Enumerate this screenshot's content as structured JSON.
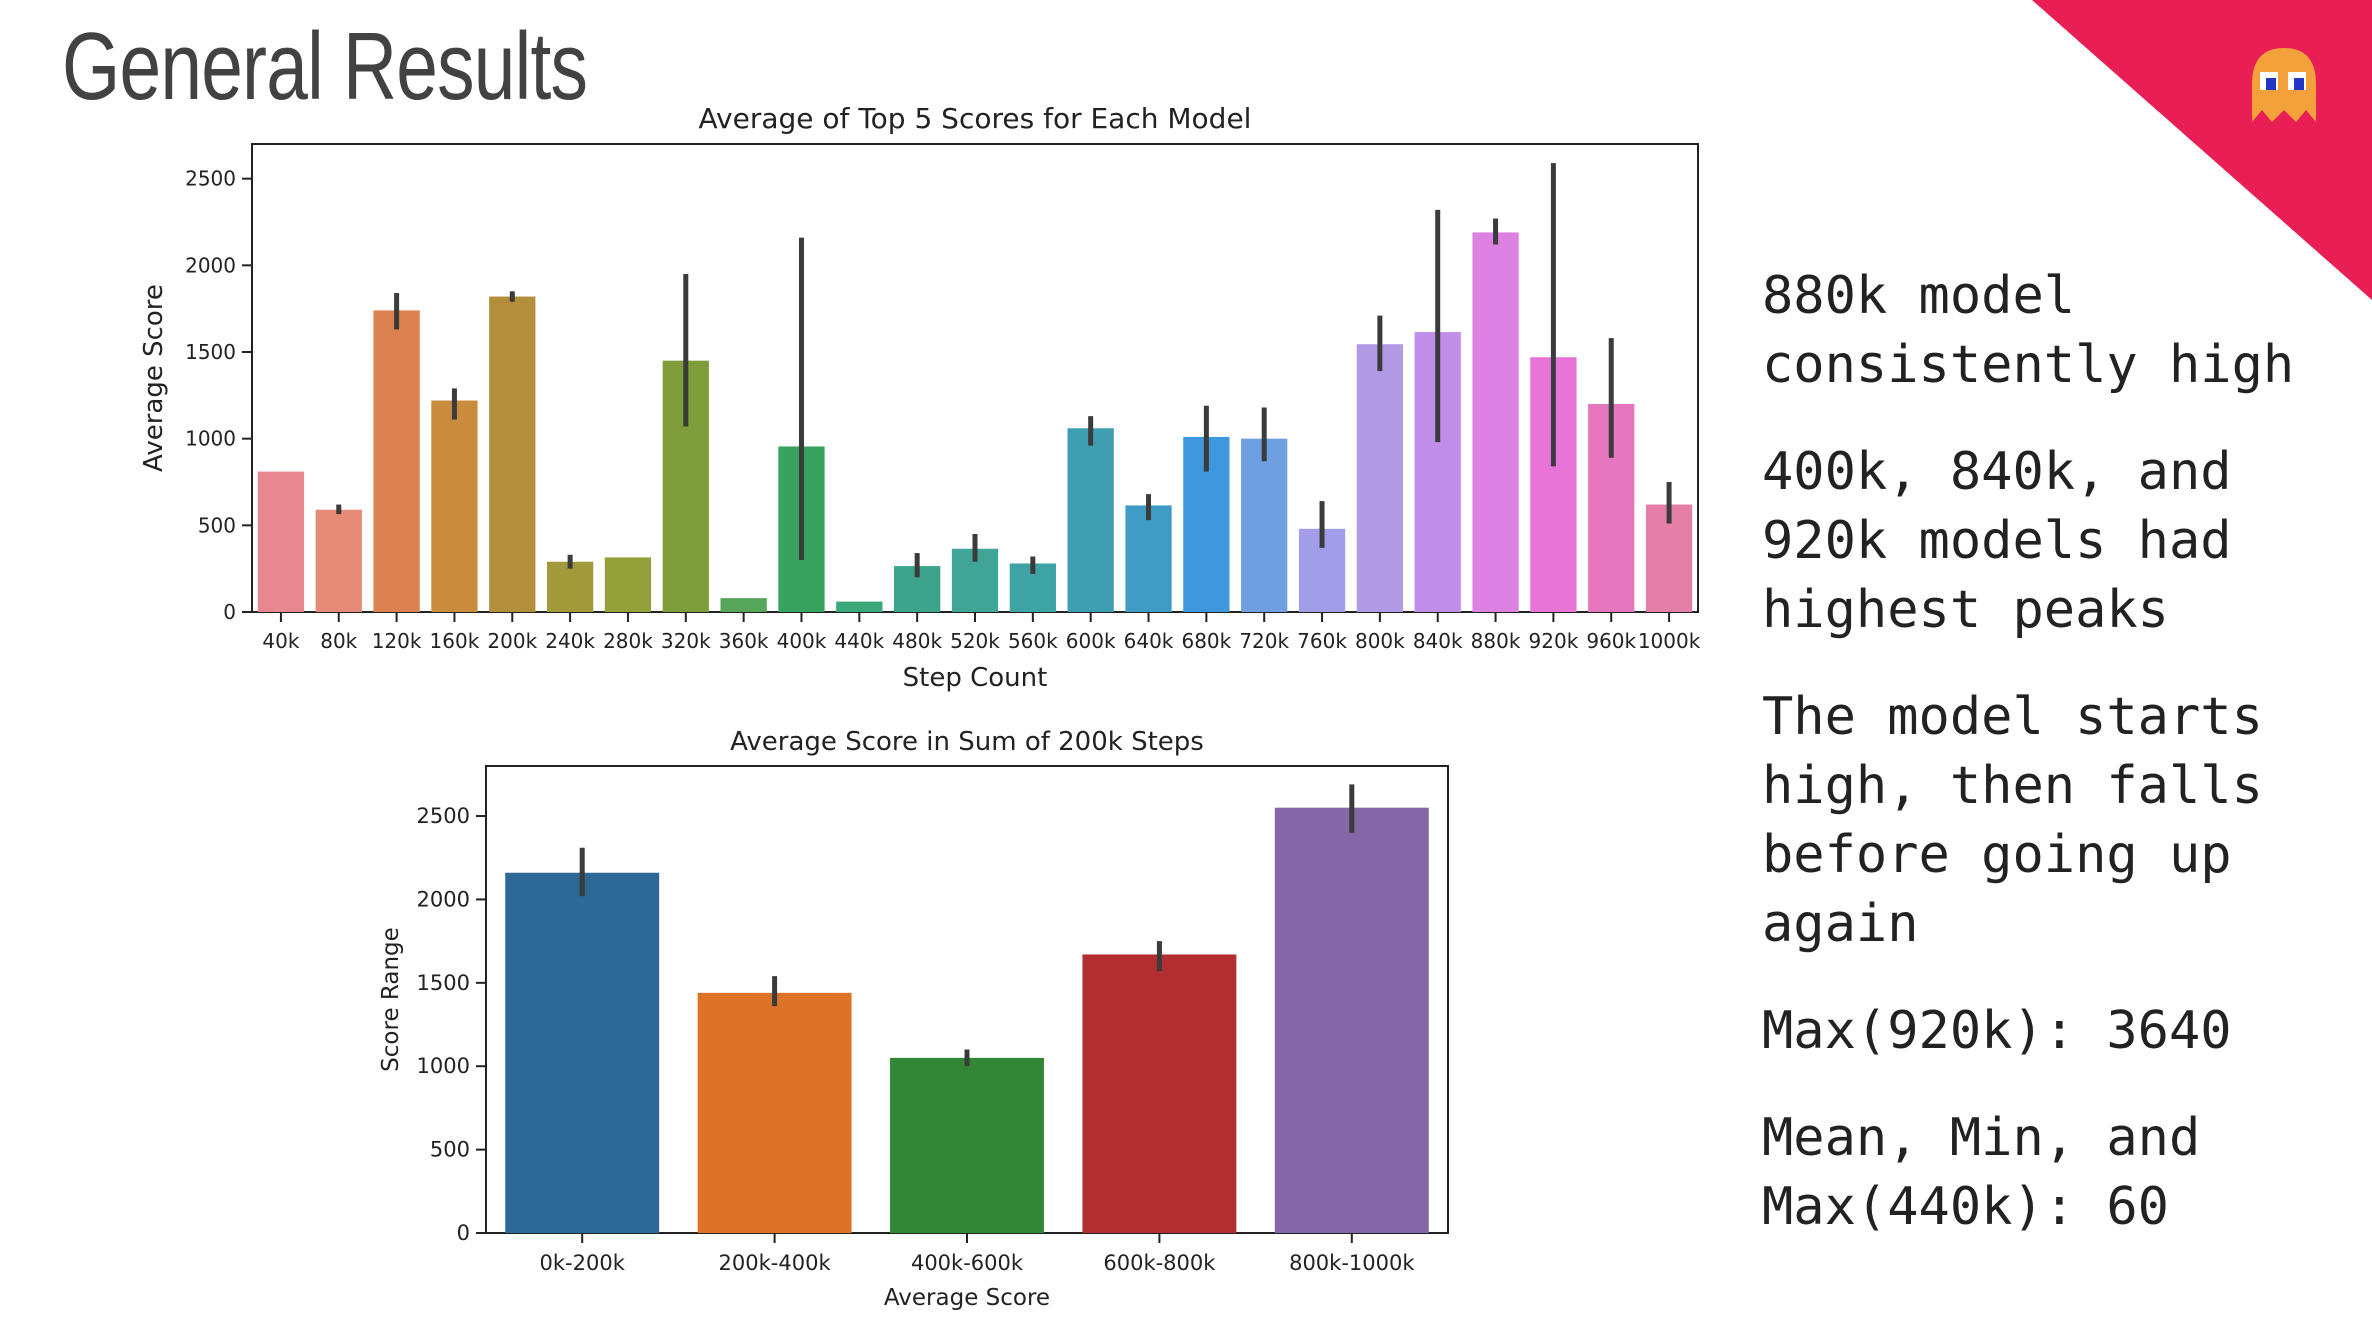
{
  "slide": {
    "title": "General Results",
    "bullets": [
      "880k model\nconsistently high",
      "400k, 840k, and\n920k models had\nhighest peaks",
      "The model starts\nhigh, then falls\nbefore going up\nagain",
      "Max(920k): 3640",
      "Mean, Min, and\nMax(440k): 60"
    ],
    "accent_color": "#e91e55",
    "icon": "ghost-icon"
  },
  "chart_data": [
    {
      "type": "bar",
      "title": "Average of Top 5 Scores for Each Model",
      "xlabel": "Step Count",
      "ylabel": "Average Score",
      "ylim": [
        0,
        2700
      ],
      "yticks": [
        0,
        500,
        1000,
        1500,
        2000,
        2500
      ],
      "grid": false,
      "categories": [
        "40k",
        "80k",
        "120k",
        "160k",
        "200k",
        "240k",
        "280k",
        "320k",
        "360k",
        "400k",
        "440k",
        "480k",
        "520k",
        "560k",
        "600k",
        "640k",
        "680k",
        "720k",
        "760k",
        "800k",
        "840k",
        "880k",
        "920k",
        "960k",
        "1000k"
      ],
      "values": [
        810,
        590,
        1740,
        1220,
        1820,
        290,
        315,
        1450,
        80,
        955,
        60,
        265,
        365,
        280,
        1060,
        615,
        1010,
        1000,
        480,
        1545,
        1615,
        2190,
        1470,
        1200,
        620
      ],
      "error_low": [
        810,
        565,
        1630,
        1110,
        1790,
        250,
        315,
        1070,
        80,
        300,
        60,
        200,
        290,
        220,
        960,
        530,
        810,
        870,
        370,
        1390,
        980,
        2120,
        840,
        890,
        510
      ],
      "error_high": [
        810,
        620,
        1840,
        1290,
        1850,
        330,
        315,
        1950,
        80,
        2160,
        60,
        340,
        450,
        320,
        1130,
        680,
        1190,
        1180,
        640,
        1710,
        2320,
        2270,
        2590,
        1580,
        750
      ],
      "colors": [
        "#e8878f",
        "#e58b78",
        "#dc8250",
        "#c98c3e",
        "#b38f3c",
        "#a2993b",
        "#94a13a",
        "#7f9e3b",
        "#55a55b",
        "#37a35f",
        "#3aa87a",
        "#3ba489",
        "#3ea597",
        "#3ea3a5",
        "#3d9fb1",
        "#3f9dc5",
        "#3f98de",
        "#6e9fe0",
        "#a19de8",
        "#b19ae6",
        "#c08ee8",
        "#dd82e3",
        "#e774d6",
        "#e677bf",
        "#e57fa8"
      ]
    },
    {
      "type": "bar",
      "title": "Average Score in Sum of 200k Steps",
      "xlabel": "Average Score",
      "ylabel": "Score Range",
      "ylim": [
        0,
        2800
      ],
      "yticks": [
        0,
        500,
        1000,
        1500,
        2000,
        2500
      ],
      "grid": false,
      "categories": [
        "0k-200k",
        "200k-400k",
        "400k-600k",
        "600k-800k",
        "800k-1000k"
      ],
      "values": [
        2160,
        1440,
        1050,
        1670,
        2550
      ],
      "error_low": [
        2020,
        1360,
        1000,
        1570,
        2400
      ],
      "error_high": [
        2310,
        1540,
        1100,
        1750,
        2690
      ],
      "colors": [
        "#2d6897",
        "#dd7229",
        "#318736",
        "#b32e30",
        "#8467a6"
      ]
    }
  ]
}
